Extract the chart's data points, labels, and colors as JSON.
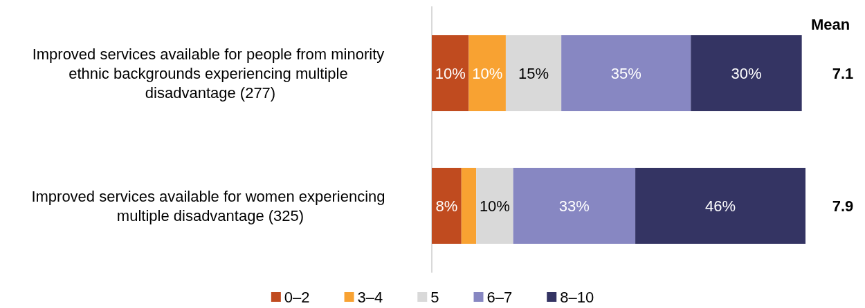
{
  "chart_data": {
    "type": "bar",
    "orientation": "horizontal",
    "stacked": true,
    "categories": [
      "Improved services available for people from minority ethnic backgrounds experiencing multiple disadvantage (277)",
      "Improved services available for women experiencing multiple disadvantage (325)"
    ],
    "series": [
      {
        "name": "0–2",
        "color": "#c04b1f",
        "values": [
          10,
          8
        ],
        "value_labels": [
          "10%",
          "8%"
        ]
      },
      {
        "name": "3–4",
        "color": "#f8a232",
        "values": [
          10,
          4
        ],
        "value_labels": [
          "10%",
          null
        ]
      },
      {
        "name": "5",
        "color": "#d9d9d9",
        "values": [
          15,
          10
        ],
        "value_labels": [
          "15%",
          "10%"
        ]
      },
      {
        "name": "6–7",
        "color": "#8787c2",
        "values": [
          35,
          33
        ],
        "value_labels": [
          "35%",
          "33%"
        ]
      },
      {
        "name": "8–10",
        "color": "#343463",
        "values": [
          30,
          46
        ],
        "value_labels": [
          "30%",
          "46%"
        ]
      }
    ],
    "legend": "bottom",
    "annotations": [
      "Mean",
      "7.1",
      "7.9"
    ]
  }
}
